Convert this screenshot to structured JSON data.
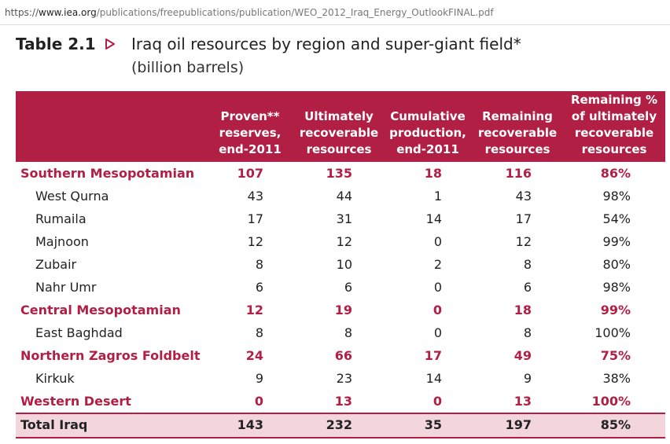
{
  "browser": {
    "url_scheme": "https://",
    "url_host": "www.iea.org",
    "url_path": "/publications/freepublications/publication/WEO_2012_Iraq_Energy_OutlookFINAL.pdf"
  },
  "table": {
    "number": "Table 2.1",
    "title": "Iraq oil resources by region and super-giant field*",
    "subtitle": "(billion barrels)",
    "accent_color": "#b21f45",
    "columns": [
      "Proven** reserves, end-2011",
      "Ultimately recoverable resources",
      "Cumulative production, end-2011",
      "Remaining recoverable resources",
      "Remaining % of ultimately recoverable resources"
    ],
    "rows": [
      {
        "type": "region",
        "name": "Southern Mesopotamian",
        "values": [
          "107",
          "135",
          "18",
          "116",
          "86%"
        ]
      },
      {
        "type": "field",
        "name": "West Qurna",
        "values": [
          "43",
          "44",
          "1",
          "43",
          "98%"
        ]
      },
      {
        "type": "field",
        "name": "Rumaila",
        "values": [
          "17",
          "31",
          "14",
          "17",
          "54%"
        ]
      },
      {
        "type": "field",
        "name": "Majnoon",
        "values": [
          "12",
          "12",
          "0",
          "12",
          "99%"
        ]
      },
      {
        "type": "field",
        "name": "Zubair",
        "values": [
          "8",
          "10",
          "2",
          "8",
          "80%"
        ]
      },
      {
        "type": "field",
        "name": "Nahr Umr",
        "values": [
          "6",
          "6",
          "0",
          "6",
          "98%"
        ]
      },
      {
        "type": "region",
        "name": "Central Mesopotamian",
        "values": [
          "12",
          "19",
          "0",
          "18",
          "99%"
        ]
      },
      {
        "type": "field",
        "name": "East Baghdad",
        "values": [
          "8",
          "8",
          "0",
          "8",
          "100%"
        ]
      },
      {
        "type": "region",
        "name": "Northern Zagros Foldbelt",
        "values": [
          "24",
          "66",
          "17",
          "49",
          "75%"
        ]
      },
      {
        "type": "field",
        "name": "Kirkuk",
        "values": [
          "9",
          "23",
          "14",
          "9",
          "38%"
        ]
      },
      {
        "type": "region",
        "name": "Western Desert",
        "values": [
          "0",
          "13",
          "0",
          "13",
          "100%"
        ]
      }
    ],
    "total": {
      "name": "Total Iraq",
      "values": [
        "143",
        "232",
        "35",
        "197",
        "85%"
      ]
    }
  }
}
